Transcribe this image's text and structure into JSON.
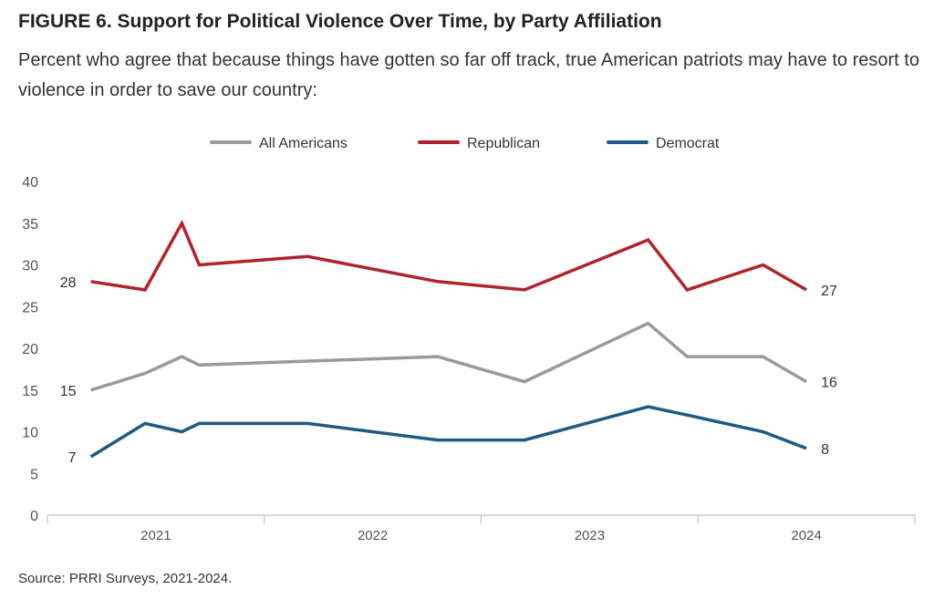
{
  "figure": {
    "title": "FIGURE 6. Support for Political Violence Over Time, by Party Affiliation",
    "subtitle": "Percent who agree that because things have gotten so far off track, true American patriots may have to resort to violence in order to save our country:",
    "source": "Source: PRRI Surveys, 2021-2024."
  },
  "chart_data": {
    "type": "line",
    "title": "FIGURE 6. Support for Political Violence Over Time, by Party Affiliation",
    "subtitle": "Percent who agree that because things have gotten so far off track, true American patriots may have to resort to violence in order to save our country:",
    "xlabel": "",
    "ylabel": "",
    "ylim": [
      0,
      40
    ],
    "yticks": [
      0,
      5,
      10,
      15,
      20,
      25,
      30,
      35,
      40
    ],
    "xlim": [
      2020.5,
      2024.5
    ],
    "xtick_labels": [
      "2021",
      "2022",
      "2023",
      "2024"
    ],
    "xtick_values": [
      2021,
      2022,
      2023,
      2024
    ],
    "x": [
      2020.7,
      2020.95,
      2021.12,
      2021.2,
      2021.7,
      2022.3,
      2022.7,
      2023.0,
      2023.27,
      2023.45,
      2023.8,
      2024.0
    ],
    "grid": false,
    "legend_position": "top-center",
    "series": [
      {
        "name": "All Americans",
        "color": "#9a9a9a",
        "values": [
          15,
          17,
          19,
          18,
          null,
          19,
          16,
          null,
          23,
          19,
          19,
          16
        ],
        "start_label": "15",
        "end_label": "16"
      },
      {
        "name": "Republican",
        "color": "#b0232a",
        "values": [
          28,
          27,
          35,
          30,
          31,
          28,
          27,
          null,
          33,
          27,
          30,
          27
        ],
        "start_label": "28",
        "end_label": "27"
      },
      {
        "name": "Democrat",
        "color": "#1f5a85",
        "values": [
          7,
          11,
          10,
          11,
          11,
          9,
          9,
          null,
          13,
          12,
          10,
          8
        ],
        "start_label": "7",
        "end_label": "8"
      }
    ]
  }
}
